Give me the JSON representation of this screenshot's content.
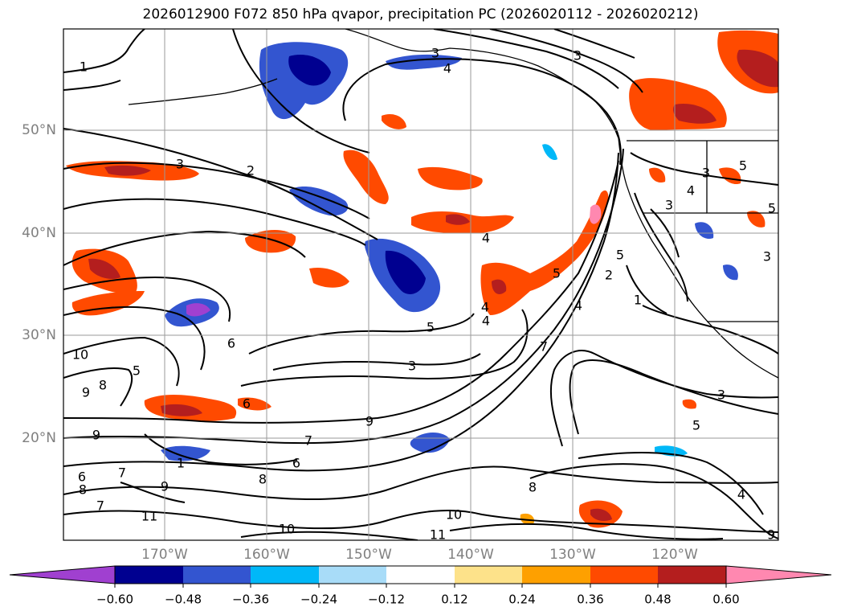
{
  "title": "2026012900 F072 850 hPa qvapor, precipitation PC (2026020112 - 2026020212)",
  "colors": {
    "frame": "#000000",
    "grid": "#9a9a9a",
    "contour": "#000000",
    "tick_text": "#808080"
  },
  "lat_axis": {
    "ticks": [
      "50°N",
      "40°N",
      "30°N",
      "20°N"
    ],
    "values": [
      50,
      40,
      30,
      20
    ]
  },
  "lon_axis": {
    "ticks": [
      "170°W",
      "160°W",
      "150°W",
      "140°W",
      "130°W",
      "120°W"
    ],
    "values": [
      -170,
      -160,
      -150,
      -140,
      -130,
      -120
    ]
  },
  "colorbar": {
    "ticks": [
      "−0.60",
      "−0.48",
      "−0.36",
      "−0.24",
      "−0.12",
      "0.12",
      "0.24",
      "0.36",
      "0.48",
      "0.60"
    ],
    "colors": [
      "#a040d0",
      "#000090",
      "#3355d0",
      "#00b8f8",
      "#a8dcf8",
      "#ffffff",
      "#fde28a",
      "#fea000",
      "#ff4a00",
      "#b41e1e",
      "#ff88b0"
    ],
    "extend": "both"
  },
  "contour_labels": [
    {
      "text": "1"
    },
    {
      "text": "3"
    },
    {
      "text": "4"
    },
    {
      "text": "3"
    },
    {
      "text": "3"
    },
    {
      "text": "2"
    },
    {
      "text": "4"
    },
    {
      "text": "3"
    },
    {
      "text": "4"
    },
    {
      "text": "3"
    },
    {
      "text": "5"
    },
    {
      "text": "4"
    },
    {
      "text": "5"
    },
    {
      "text": "4"
    },
    {
      "text": "5"
    },
    {
      "text": "6"
    },
    {
      "text": "7"
    },
    {
      "text": "10"
    },
    {
      "text": "8"
    },
    {
      "text": "9"
    },
    {
      "text": "5"
    },
    {
      "text": "6"
    },
    {
      "text": "9"
    },
    {
      "text": "9"
    },
    {
      "text": "7"
    },
    {
      "text": "8"
    },
    {
      "text": "6"
    },
    {
      "text": "8"
    },
    {
      "text": "7"
    },
    {
      "text": "9"
    },
    {
      "text": "11"
    },
    {
      "text": "10"
    },
    {
      "text": "10"
    },
    {
      "text": "11"
    },
    {
      "text": "8"
    },
    {
      "text": "6"
    },
    {
      "text": "4"
    },
    {
      "text": "3"
    },
    {
      "text": "5"
    },
    {
      "text": "7"
    },
    {
      "text": "3"
    },
    {
      "text": "1"
    },
    {
      "text": "9"
    },
    {
      "text": "4"
    },
    {
      "text": "2"
    },
    {
      "text": "3"
    },
    {
      "text": "5"
    },
    {
      "text": "5"
    },
    {
      "text": "1"
    }
  ]
}
